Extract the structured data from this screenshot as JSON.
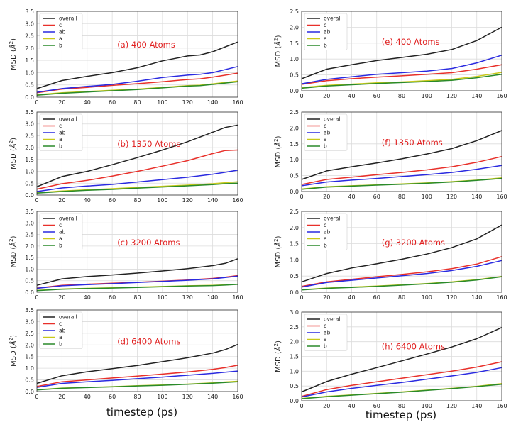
{
  "figure": {
    "xlabel_left": "timestep (ps)",
    "xlabel_right": "timestep (ps)",
    "ylabel_prefix": "MSD (",
    "ylabel_unit": "Å",
    "ylabel_sup": "2",
    "ylabel_suffix": ")"
  },
  "chart_data": [
    {
      "id": "a",
      "type": "line",
      "annotation": "(a) 400 Atoms",
      "xlim": [
        0,
        160
      ],
      "ylim": [
        0,
        3.5
      ],
      "xticks": [
        "0",
        "20",
        "40",
        "60",
        "80",
        "100",
        "120",
        "140",
        "160"
      ],
      "yticks": [
        "0.0",
        "0.5",
        "1.0",
        "1.5",
        "2.0",
        "2.5",
        "3.0",
        "3.5"
      ],
      "grid": true,
      "legend": "top-left",
      "x": [
        0,
        20,
        40,
        60,
        80,
        100,
        120,
        130,
        140,
        160
      ],
      "series": [
        {
          "name": "overall",
          "color": "#222222",
          "values": [
            0.35,
            0.68,
            0.85,
            1.0,
            1.2,
            1.48,
            1.68,
            1.72,
            1.85,
            2.25
          ]
        },
        {
          "name": "c",
          "color": "#e8302a",
          "values": [
            0.18,
            0.33,
            0.4,
            0.48,
            0.55,
            0.63,
            0.72,
            0.75,
            0.82,
            0.98
          ]
        },
        {
          "name": "ab",
          "color": "#2a2ae0",
          "values": [
            0.2,
            0.35,
            0.44,
            0.52,
            0.65,
            0.8,
            0.9,
            0.93,
            1.0,
            1.25
          ]
        },
        {
          "name": "a",
          "color": "#c9c91a",
          "values": [
            0.1,
            0.18,
            0.23,
            0.28,
            0.33,
            0.4,
            0.47,
            0.49,
            0.54,
            0.66
          ]
        },
        {
          "name": "b",
          "color": "#2a8a2a",
          "values": [
            0.08,
            0.16,
            0.21,
            0.26,
            0.31,
            0.38,
            0.45,
            0.47,
            0.52,
            0.63
          ]
        }
      ]
    },
    {
      "id": "b",
      "type": "line",
      "annotation": "(b) 1350 Atoms",
      "xlim": [
        0,
        160
      ],
      "ylim": [
        0,
        3.5
      ],
      "xticks": [
        "0",
        "20",
        "40",
        "60",
        "80",
        "100",
        "120",
        "140",
        "160"
      ],
      "yticks": [
        "0.0",
        "0.5",
        "1.0",
        "1.5",
        "2.0",
        "2.5",
        "3.0",
        "3.5"
      ],
      "grid": true,
      "legend": "top-left",
      "x": [
        0,
        20,
        40,
        60,
        80,
        100,
        120,
        140,
        150,
        160
      ],
      "series": [
        {
          "name": "overall",
          "color": "#222222",
          "values": [
            0.35,
            0.78,
            1.0,
            1.28,
            1.58,
            1.9,
            2.25,
            2.65,
            2.85,
            2.95
          ]
        },
        {
          "name": "c",
          "color": "#e8302a",
          "values": [
            0.25,
            0.48,
            0.62,
            0.8,
            1.0,
            1.22,
            1.45,
            1.75,
            1.88,
            1.9
          ]
        },
        {
          "name": "ab",
          "color": "#2a2ae0",
          "values": [
            0.15,
            0.3,
            0.38,
            0.45,
            0.55,
            0.65,
            0.75,
            0.88,
            0.96,
            1.05
          ]
        },
        {
          "name": "a",
          "color": "#c9c91a",
          "values": [
            0.1,
            0.17,
            0.22,
            0.27,
            0.32,
            0.37,
            0.42,
            0.48,
            0.52,
            0.56
          ]
        },
        {
          "name": "b",
          "color": "#2a8a2a",
          "values": [
            0.08,
            0.15,
            0.2,
            0.24,
            0.29,
            0.34,
            0.39,
            0.44,
            0.48,
            0.5
          ]
        }
      ]
    },
    {
      "id": "c",
      "type": "line",
      "annotation": "(c) 3200 Atoms",
      "xlim": [
        0,
        160
      ],
      "ylim": [
        0,
        3.5
      ],
      "xticks": [
        "0",
        "20",
        "40",
        "60",
        "80",
        "100",
        "120",
        "140",
        "160"
      ],
      "yticks": [
        "0.0",
        "0.5",
        "1.0",
        "1.5",
        "2.0",
        "2.5",
        "3.0",
        "3.5"
      ],
      "grid": true,
      "legend": "top-left",
      "x": [
        0,
        20,
        40,
        60,
        80,
        100,
        120,
        140,
        150,
        160
      ],
      "series": [
        {
          "name": "overall",
          "color": "#222222",
          "values": [
            0.3,
            0.58,
            0.68,
            0.75,
            0.83,
            0.92,
            1.02,
            1.15,
            1.25,
            1.45
          ]
        },
        {
          "name": "c",
          "color": "#e8302a",
          "values": [
            0.18,
            0.3,
            0.35,
            0.39,
            0.43,
            0.48,
            0.53,
            0.6,
            0.65,
            0.72
          ]
        },
        {
          "name": "ab",
          "color": "#2a2ae0",
          "values": [
            0.17,
            0.28,
            0.33,
            0.37,
            0.42,
            0.47,
            0.52,
            0.58,
            0.64,
            0.7
          ]
        },
        {
          "name": "a",
          "color": "#c9c91a",
          "values": [
            0.08,
            0.14,
            0.17,
            0.19,
            0.22,
            0.25,
            0.28,
            0.3,
            0.32,
            0.35
          ]
        },
        {
          "name": "b",
          "color": "#2a8a2a",
          "values": [
            0.07,
            0.13,
            0.16,
            0.18,
            0.21,
            0.24,
            0.27,
            0.29,
            0.31,
            0.34
          ]
        }
      ]
    },
    {
      "id": "d",
      "type": "line",
      "annotation": "(d) 6400 Atoms",
      "xlim": [
        0,
        160
      ],
      "ylim": [
        0,
        3.5
      ],
      "xticks": [
        "0",
        "20",
        "40",
        "60",
        "80",
        "100",
        "120",
        "140",
        "160"
      ],
      "yticks": [
        "0.0",
        "0.5",
        "1.0",
        "1.5",
        "2.0",
        "2.5",
        "3.0",
        "3.5"
      ],
      "grid": true,
      "legend": "top-left",
      "x": [
        0,
        20,
        40,
        60,
        80,
        100,
        120,
        140,
        150,
        160
      ],
      "series": [
        {
          "name": "overall",
          "color": "#222222",
          "values": [
            0.35,
            0.68,
            0.85,
            0.98,
            1.12,
            1.28,
            1.45,
            1.65,
            1.8,
            2.02
          ]
        },
        {
          "name": "c",
          "color": "#e8302a",
          "values": [
            0.22,
            0.42,
            0.5,
            0.58,
            0.66,
            0.75,
            0.84,
            0.95,
            1.03,
            1.13
          ]
        },
        {
          "name": "ab",
          "color": "#2a2ae0",
          "values": [
            0.18,
            0.35,
            0.42,
            0.48,
            0.55,
            0.62,
            0.7,
            0.78,
            0.83,
            0.88
          ]
        },
        {
          "name": "a",
          "color": "#c9c91a",
          "values": [
            0.08,
            0.15,
            0.18,
            0.21,
            0.25,
            0.28,
            0.32,
            0.37,
            0.41,
            0.44
          ]
        },
        {
          "name": "b",
          "color": "#2a8a2a",
          "values": [
            0.07,
            0.14,
            0.17,
            0.2,
            0.24,
            0.27,
            0.31,
            0.36,
            0.39,
            0.42
          ]
        }
      ]
    },
    {
      "id": "e",
      "type": "line",
      "annotation": "(e) 400 Atoms",
      "xlim": [
        0,
        160
      ],
      "ylim": [
        0,
        2.5
      ],
      "xticks": [
        "0",
        "20",
        "40",
        "60",
        "80",
        "100",
        "120",
        "140",
        "160"
      ],
      "yticks": [
        "0.0",
        "0.5",
        "1.0",
        "1.5",
        "2.0",
        "2.5"
      ],
      "grid": true,
      "legend": "top-left",
      "x": [
        0,
        20,
        40,
        60,
        80,
        100,
        120,
        140,
        160
      ],
      "series": [
        {
          "name": "overall",
          "color": "#222222",
          "values": [
            0.38,
            0.68,
            0.82,
            0.95,
            1.05,
            1.15,
            1.3,
            1.58,
            2.0
          ]
        },
        {
          "name": "c",
          "color": "#e8302a",
          "values": [
            0.2,
            0.32,
            0.38,
            0.43,
            0.47,
            0.52,
            0.57,
            0.68,
            0.82
          ]
        },
        {
          "name": "ab",
          "color": "#2a2ae0",
          "values": [
            0.22,
            0.36,
            0.44,
            0.52,
            0.57,
            0.62,
            0.7,
            0.88,
            1.12
          ]
        },
        {
          "name": "a",
          "color": "#c9c91a",
          "values": [
            0.1,
            0.17,
            0.21,
            0.25,
            0.28,
            0.32,
            0.36,
            0.45,
            0.58
          ]
        },
        {
          "name": "b",
          "color": "#2a8a2a",
          "values": [
            0.08,
            0.15,
            0.19,
            0.23,
            0.26,
            0.29,
            0.33,
            0.41,
            0.52
          ]
        }
      ]
    },
    {
      "id": "f",
      "type": "line",
      "annotation": "(f) 1350 Atoms",
      "xlim": [
        0,
        160
      ],
      "ylim": [
        0,
        2.5
      ],
      "xticks": [
        "0",
        "20",
        "40",
        "60",
        "80",
        "100",
        "120",
        "140",
        "160"
      ],
      "yticks": [
        "0.0",
        "0.5",
        "1.0",
        "1.5",
        "2.0",
        "2.5"
      ],
      "grid": true,
      "legend": "top-left",
      "x": [
        0,
        20,
        40,
        60,
        80,
        100,
        120,
        140,
        160
      ],
      "series": [
        {
          "name": "overall",
          "color": "#222222",
          "values": [
            0.38,
            0.65,
            0.78,
            0.9,
            1.03,
            1.18,
            1.35,
            1.6,
            1.92
          ]
        },
        {
          "name": "c",
          "color": "#e8302a",
          "values": [
            0.22,
            0.38,
            0.45,
            0.53,
            0.6,
            0.68,
            0.78,
            0.92,
            1.1
          ]
        },
        {
          "name": "ab",
          "color": "#2a2ae0",
          "values": [
            0.18,
            0.3,
            0.36,
            0.41,
            0.47,
            0.53,
            0.6,
            0.7,
            0.82
          ]
        },
        {
          "name": "a",
          "color": "#c9c91a",
          "values": [
            0.08,
            0.15,
            0.18,
            0.21,
            0.24,
            0.27,
            0.31,
            0.36,
            0.43
          ]
        },
        {
          "name": "b",
          "color": "#2a8a2a",
          "values": [
            0.07,
            0.14,
            0.17,
            0.2,
            0.23,
            0.26,
            0.3,
            0.35,
            0.41
          ]
        }
      ]
    },
    {
      "id": "g",
      "type": "line",
      "annotation": "(g) 3200 Atoms",
      "xlim": [
        0,
        160
      ],
      "ylim": [
        0,
        2.5
      ],
      "xticks": [
        "0",
        "20",
        "40",
        "60",
        "80",
        "100",
        "120",
        "140",
        "160"
      ],
      "yticks": [
        "0.0",
        "0.5",
        "1.0",
        "1.5",
        "2.0",
        "2.5"
      ],
      "grid": true,
      "legend": "top-left",
      "x": [
        0,
        20,
        40,
        60,
        80,
        100,
        120,
        140,
        160
      ],
      "series": [
        {
          "name": "overall",
          "color": "#222222",
          "values": [
            0.32,
            0.58,
            0.75,
            0.88,
            1.02,
            1.18,
            1.38,
            1.65,
            2.08
          ]
        },
        {
          "name": "c",
          "color": "#e8302a",
          "values": [
            0.18,
            0.32,
            0.4,
            0.48,
            0.55,
            0.63,
            0.73,
            0.87,
            1.1
          ]
        },
        {
          "name": "ab",
          "color": "#2a2ae0",
          "values": [
            0.16,
            0.3,
            0.37,
            0.44,
            0.51,
            0.58,
            0.67,
            0.8,
            0.98
          ]
        },
        {
          "name": "a",
          "color": "#c9c91a",
          "values": [
            0.08,
            0.13,
            0.16,
            0.19,
            0.23,
            0.27,
            0.32,
            0.39,
            0.49
          ]
        },
        {
          "name": "b",
          "color": "#2a8a2a",
          "values": [
            0.07,
            0.12,
            0.15,
            0.18,
            0.22,
            0.26,
            0.31,
            0.38,
            0.48
          ]
        }
      ]
    },
    {
      "id": "h",
      "type": "line",
      "annotation": "(h) 6400 Atoms",
      "xlim": [
        0,
        160
      ],
      "ylim": [
        0,
        3.0
      ],
      "xticks": [
        "0",
        "20",
        "40",
        "60",
        "80",
        "100",
        "120",
        "140",
        "160"
      ],
      "yticks": [
        "0.0",
        "0.5",
        "1.0",
        "1.5",
        "2.0",
        "2.5",
        "3.0"
      ],
      "grid": true,
      "legend": "top-left",
      "x": [
        0,
        20,
        40,
        60,
        80,
        100,
        120,
        140,
        160
      ],
      "series": [
        {
          "name": "overall",
          "color": "#222222",
          "values": [
            0.3,
            0.65,
            0.9,
            1.12,
            1.35,
            1.58,
            1.82,
            2.1,
            2.48
          ]
        },
        {
          "name": "c",
          "color": "#e8302a",
          "values": [
            0.15,
            0.38,
            0.52,
            0.64,
            0.76,
            0.88,
            1.0,
            1.14,
            1.32
          ]
        },
        {
          "name": "ab",
          "color": "#2a2ae0",
          "values": [
            0.13,
            0.3,
            0.42,
            0.52,
            0.62,
            0.73,
            0.84,
            0.96,
            1.12
          ]
        },
        {
          "name": "a",
          "color": "#c9c91a",
          "values": [
            0.08,
            0.15,
            0.2,
            0.25,
            0.3,
            0.36,
            0.42,
            0.49,
            0.58
          ]
        },
        {
          "name": "b",
          "color": "#2a8a2a",
          "values": [
            0.07,
            0.14,
            0.19,
            0.24,
            0.29,
            0.35,
            0.41,
            0.48,
            0.56
          ]
        }
      ]
    }
  ]
}
